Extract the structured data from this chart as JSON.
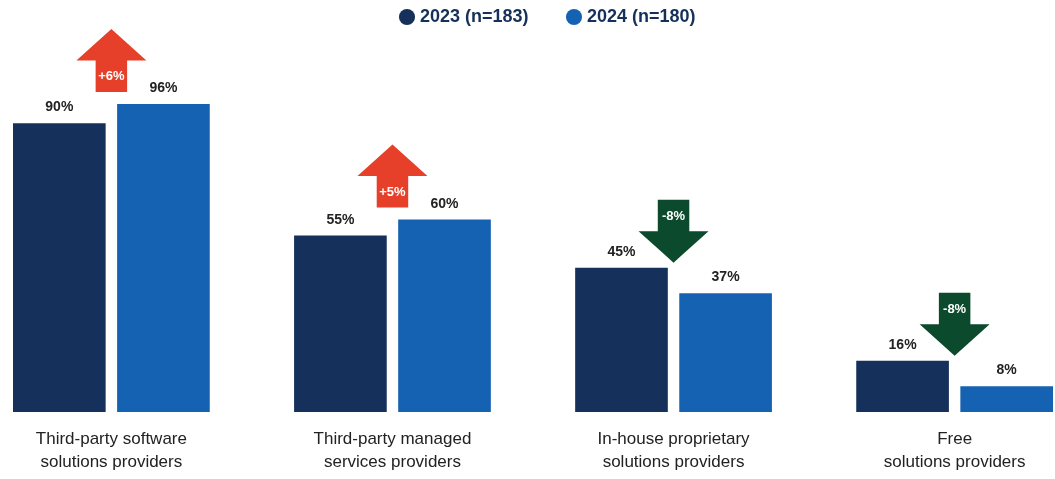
{
  "chart_data": {
    "type": "bar",
    "categories": [
      "Third-party software solutions providers",
      "Third-party managed services providers",
      "In-house proprietary solutions providers",
      "Free solutions providers"
    ],
    "series": [
      {
        "name": "2023 (n=183)",
        "color": "#15305a",
        "values": [
          90,
          55,
          45,
          16
        ],
        "value_labels": [
          "90%",
          "55%",
          "45%",
          "16%"
        ]
      },
      {
        "name": "2024 (n=180)",
        "color": "#1662b2",
        "values": [
          96,
          60,
          37,
          8
        ],
        "value_labels": [
          "96%",
          "60%",
          "37%",
          "8%"
        ]
      }
    ],
    "legend": "top",
    "annotations": [
      "+6%",
      "+5%",
      "-8%",
      "-8%"
    ]
  }
}
